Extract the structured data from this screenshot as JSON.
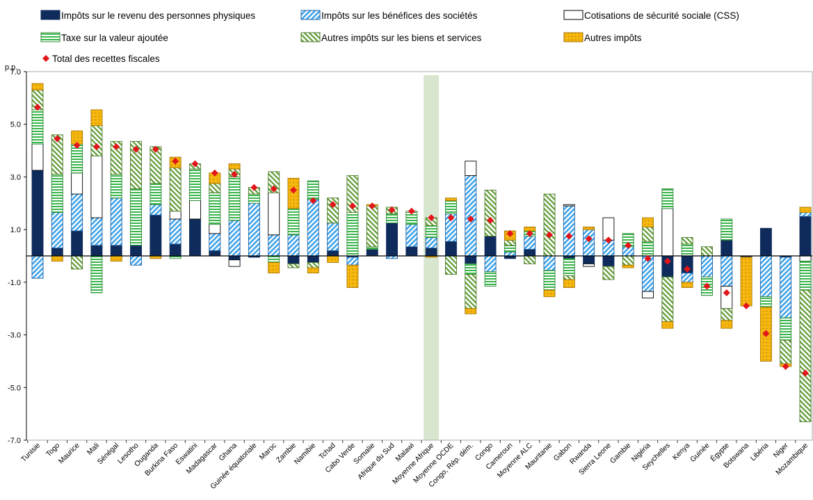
{
  "chart_data": {
    "type": "bar",
    "stacked": true,
    "title": "",
    "xlabel": "",
    "ylabel": "p.p.",
    "ylim": [
      -7,
      7
    ],
    "yticks": [
      7,
      5,
      3,
      1,
      -1,
      -3,
      -5,
      -7
    ],
    "ytick_labels": [
      "7.0",
      "5.0",
      "3.0",
      "1.0",
      "-1.0",
      "-3.0",
      "-5.0",
      "-7.0"
    ],
    "grid": false,
    "legend_position": "top",
    "highlight": "Moyenne Afrique",
    "highlight_color": "#d9e6cf",
    "categories": [
      "Tunisie",
      "Togo",
      "Maurice",
      "Mali",
      "Sénégal",
      "Lesotho",
      "Ouganda",
      "Burkina Faso",
      "Eswatini",
      "Madagascar",
      "Ghana",
      "Guinée équatoriale",
      "Maroc",
      "Zambie",
      "Namibie",
      "Tchad",
      "Cabo Verde",
      "Somalie",
      "Afrique du Sud",
      "Malawi",
      "Moyenne Afrique",
      "Moyenne OCDE",
      "Congo, Rép. dém.",
      "Congo",
      "Cameroun",
      "Moyenne ALC",
      "Mauritanie",
      "Gabon",
      "Rwanda",
      "Sierra Leone",
      "Gambie",
      "Nigéria",
      "Seychelles",
      "Kenya",
      "Guinée",
      "Égypte",
      "Botswana",
      "Libéria",
      "Niger",
      "Mozambique"
    ],
    "series": [
      {
        "name": "Impôts sur le revenu des personnes physiques",
        "color": "#0f2b5b",
        "values": [
          3.25,
          0.3,
          0.95,
          0.4,
          0.4,
          0.4,
          1.55,
          0.45,
          1.4,
          0.2,
          -0.15,
          -0.05,
          0,
          -0.3,
          -0.25,
          0.2,
          -0.05,
          0.25,
          1.25,
          0.35,
          0.3,
          0.55,
          -0.3,
          0.75,
          -0.1,
          0.25,
          0,
          -0.1,
          -0.3,
          -0.4,
          0,
          0,
          -0.8,
          -0.65,
          0,
          0.6,
          -0.05,
          1.05,
          -0.05,
          1.5
        ]
      },
      {
        "name": "Impôts sur les bénéfices des sociétés",
        "color": "#3fa3e8",
        "values": [
          -0.85,
          1.35,
          1.4,
          1.05,
          1.8,
          -0.35,
          0.4,
          0.95,
          0,
          0.65,
          1.35,
          2.0,
          0.8,
          0.8,
          2.15,
          1.05,
          -0.3,
          0,
          -0.1,
          0.85,
          0.4,
          1.05,
          3.05,
          -0.6,
          0.15,
          0.5,
          -0.55,
          1.9,
          1.0,
          0.6,
          0.35,
          -1.35,
          0,
          -0.35,
          -0.8,
          -1.15,
          0,
          -1.55,
          -2.3,
          0.15
        ]
      },
      {
        "name": "Cotisations de sécurité sociale (CSS)",
        "color": "#ffffff",
        "values": [
          1.0,
          0,
          0.8,
          2.35,
          0,
          0,
          0,
          0.3,
          0.7,
          0.35,
          -0.25,
          0,
          1.6,
          0,
          0,
          0,
          0,
          0,
          0,
          0,
          0,
          0,
          0.55,
          0,
          0,
          0,
          0,
          0.05,
          -0.1,
          0.85,
          0,
          -0.25,
          1.8,
          0,
          0,
          -0.85,
          0,
          0,
          0,
          -0.2
        ]
      },
      {
        "name": "Taxe sur la valeur ajoutée",
        "color": "#39b54a",
        "values": [
          1.3,
          1.45,
          1.1,
          -1.4,
          0.9,
          2.15,
          0.8,
          -0.1,
          1.2,
          1.2,
          1.65,
          0.35,
          -0.25,
          1.0,
          0.7,
          0,
          1.65,
          0.1,
          0.35,
          0.45,
          0.45,
          0.5,
          -0.4,
          -0.55,
          0.25,
          0.2,
          -0.75,
          -0.65,
          0,
          0,
          0.5,
          0.55,
          0.75,
          0.45,
          -0.7,
          0.8,
          0,
          -0.4,
          -0.85,
          -1.1
        ]
      },
      {
        "name": "Autres impôts sur les biens et services",
        "color": "#5e9a34",
        "values": [
          0.75,
          1.5,
          -0.5,
          1.15,
          1.25,
          1.8,
          1.4,
          1.65,
          0.2,
          0.35,
          0.3,
          0.25,
          0.8,
          -0.15,
          -0.2,
          0.95,
          1.4,
          1.55,
          0.25,
          0.05,
          0.3,
          -0.7,
          -1.3,
          1.75,
          0.2,
          -0.3,
          2.35,
          -0.15,
          0,
          -0.5,
          -0.35,
          0.55,
          -1.7,
          0.25,
          0.35,
          -0.45,
          0,
          0,
          -0.9,
          -5.0
        ]
      },
      {
        "name": "Autres impôts",
        "color": "#f6b70f",
        "values": [
          0.25,
          -0.2,
          0.5,
          0.6,
          -0.2,
          0,
          -0.1,
          0.4,
          0,
          0.4,
          0.2,
          0,
          -0.4,
          1.15,
          -0.2,
          -0.25,
          -0.85,
          0.05,
          0,
          0,
          -0.05,
          0.1,
          -0.2,
          0,
          0.35,
          0.15,
          -0.25,
          -0.3,
          0.1,
          0,
          -0.1,
          0.35,
          -0.25,
          -0.2,
          0,
          -0.3,
          -1.85,
          -2.05,
          -0.1,
          0.2
        ]
      }
    ],
    "total": {
      "name": "Total des recettes fiscales",
      "color": "#e3151b",
      "values": [
        5.65,
        4.45,
        4.2,
        4.15,
        4.15,
        4.05,
        4.05,
        3.6,
        3.5,
        3.15,
        3.1,
        2.6,
        2.55,
        2.5,
        2.1,
        1.95,
        1.9,
        1.9,
        1.75,
        1.7,
        1.45,
        1.45,
        1.4,
        1.35,
        0.85,
        0.85,
        0.8,
        0.75,
        0.65,
        0.6,
        0.4,
        -0.1,
        -0.2,
        -0.5,
        -1.15,
        -1.4,
        -1.9,
        -2.95,
        -4.2,
        -4.45
      ]
    }
  }
}
